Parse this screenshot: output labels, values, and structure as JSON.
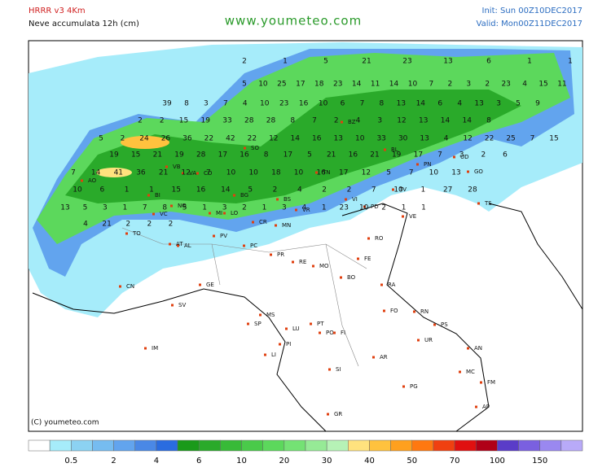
{
  "header": {
    "model": "HRRR v3 4Km",
    "field": "Neve accumulata 12h (cm)",
    "site": "www.youmeteo.com",
    "init": "Init: Sun 00Z10DEC2017",
    "valid": "Valid: Mon00Z11DEC2017"
  },
  "copyright": "(C) youmeteo.com",
  "legend": {
    "colors": [
      "#ffffff",
      "#a6ecfa",
      "#8cd2f2",
      "#76bcf0",
      "#62a4ee",
      "#4a88e6",
      "#2a6ce0",
      "#1a9a1a",
      "#2aaa2a",
      "#38ba38",
      "#4aca4a",
      "#5cd85c",
      "#74e274",
      "#96ea96",
      "#b6f2b6",
      "#ffe27e",
      "#ffc23e",
      "#ffa01e",
      "#ff7810",
      "#f04010",
      "#e01010",
      "#b00018",
      "#5a3cc8",
      "#7a60e0",
      "#9a88f0",
      "#b8aaf8"
    ],
    "labels": [
      0.5,
      2,
      4,
      6,
      10,
      20,
      30,
      40,
      50,
      70,
      100,
      150
    ]
  },
  "cities": [
    "AO",
    "TO",
    "VC",
    "BI",
    "NO",
    "VB",
    "VA",
    "CO",
    "MI",
    "LO",
    "BG",
    "SO",
    "BS",
    "CR",
    "MN",
    "PV",
    "PC",
    "PR",
    "RE",
    "MO",
    "BO",
    "FE",
    "RO",
    "VR",
    "VI",
    "PD",
    "VE",
    "TV",
    "BL",
    "PN",
    "UD",
    "GO",
    "TS",
    "BZ",
    "TN",
    "CN",
    "AL",
    "AT",
    "SV",
    "GE",
    "IM",
    "SP",
    "MS",
    "LU",
    "PT",
    "PO",
    "FI",
    "PI",
    "LI",
    "SI",
    "AR",
    "RA",
    "FO",
    "RN",
    "PS",
    "UR",
    "AN",
    "MC",
    "FM",
    "AP",
    "PG",
    "GR"
  ],
  "snow_labels": [
    2,
    1,
    5,
    21,
    23,
    13,
    6,
    1,
    1,
    5,
    10,
    25,
    17,
    18,
    23,
    14,
    11,
    14,
    10,
    7,
    2,
    3,
    2,
    23,
    4,
    15,
    11,
    39,
    8,
    3,
    7,
    4,
    10,
    23,
    16,
    10,
    6,
    7,
    8,
    13,
    14,
    6,
    4,
    13,
    3,
    5,
    9,
    2,
    2,
    15,
    19,
    33,
    28,
    28,
    8,
    7,
    2,
    4,
    3,
    12,
    13,
    14,
    14,
    8,
    5,
    2,
    24,
    26,
    36,
    22,
    42,
    22,
    12,
    14,
    16,
    13,
    10,
    33,
    30,
    13,
    4,
    12,
    22,
    25,
    7,
    15,
    19,
    15,
    21,
    19,
    28,
    17,
    16,
    8,
    17,
    5,
    21,
    16,
    21,
    19,
    17,
    7,
    3,
    2,
    6,
    7,
    14,
    41,
    36,
    21,
    12,
    7,
    10,
    10,
    18,
    10,
    16,
    17,
    12,
    5,
    7,
    10,
    13,
    10,
    6,
    1,
    1,
    15,
    16,
    14,
    5,
    2,
    4,
    2,
    2,
    7,
    10,
    1,
    27,
    28,
    13,
    5,
    3,
    1,
    7,
    8,
    5,
    1,
    3,
    2,
    1,
    3,
    4,
    1,
    23,
    10,
    2,
    1,
    1,
    4,
    21,
    2,
    2,
    2
  ]
}
